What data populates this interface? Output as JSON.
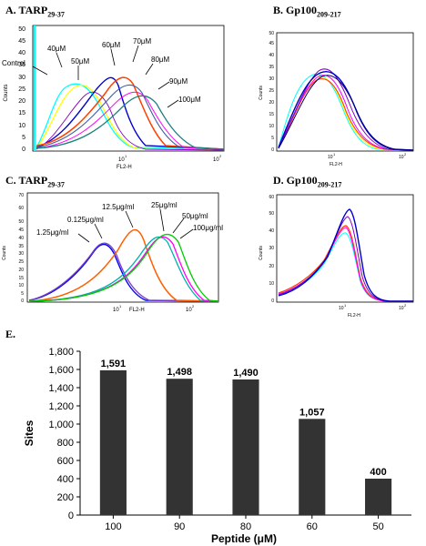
{
  "panels": {
    "a": {
      "title": "A. TARP",
      "sub": "29-37",
      "ylabel": "Counts",
      "xlabel": "FL2-H",
      "xtick_1": "10",
      "xtick_1_exp": "1",
      "xtick_2": "10",
      "xtick_2_exp": "2",
      "labels": [
        "Control",
        "40μM",
        "50μM",
        "60μM",
        "70μM",
        "80μM",
        "90μM",
        "100μM"
      ],
      "yticks": [
        "0",
        "5",
        "10",
        "15",
        "20",
        "25",
        "30",
        "35",
        "40",
        "45",
        "50"
      ]
    },
    "b": {
      "title": "B. Gp100",
      "sub": "209-217",
      "ylabel": "Counts",
      "xlabel": "FL2-H",
      "xtick_1": "10",
      "xtick_1_exp": "1",
      "xtick_2": "10",
      "xtick_2_exp": "2",
      "yticks": [
        "0",
        "5",
        "10",
        "15",
        "20",
        "25",
        "30",
        "35",
        "40",
        "45",
        "50"
      ]
    },
    "c": {
      "title": "C. TARP",
      "sub": "29-37",
      "ylabel": "Counts",
      "xlabel": "FL2-H",
      "xtick_1": "10",
      "xtick_1_exp": "1",
      "xtick_2": "10",
      "xtick_2_exp": "2",
      "labels": [
        "1.25μg/ml",
        "0.125μg/ml",
        "12.5μg/ml",
        "25μg/ml",
        "50μg/ml",
        "100μg/ml"
      ],
      "yticks": [
        "0",
        "5",
        "10",
        "15",
        "20",
        "25",
        "30",
        "35",
        "40",
        "45",
        "50",
        "60",
        "70"
      ]
    },
    "d": {
      "title": "D. Gp100",
      "sub": "209-217",
      "ylabel": "Counts",
      "xlabel": "FL2-H",
      "xtick_1": "10",
      "xtick_1_exp": "1",
      "xtick_2": "10",
      "xtick_2_exp": "2",
      "yticks": [
        "0",
        "10",
        "20",
        "30",
        "40",
        "50",
        "60"
      ]
    }
  },
  "chart_data": {
    "type": "bar",
    "title": "E.",
    "categories": [
      "100",
      "90",
      "80",
      "60",
      "50"
    ],
    "values": [
      1591,
      1498,
      1490,
      1057,
      400
    ],
    "value_labels": [
      "1,591",
      "1,498",
      "1,490",
      "1,057",
      "400"
    ],
    "xlabel": "Peptide (μM)",
    "ylabel": "Sites",
    "ylim": [
      0,
      1800
    ],
    "yticks": [
      "0",
      "200",
      "400",
      "600",
      "800",
      "1,000",
      "1,200",
      "1,400",
      "1,600",
      "1,800"
    ],
    "bar_color": "#333333"
  }
}
